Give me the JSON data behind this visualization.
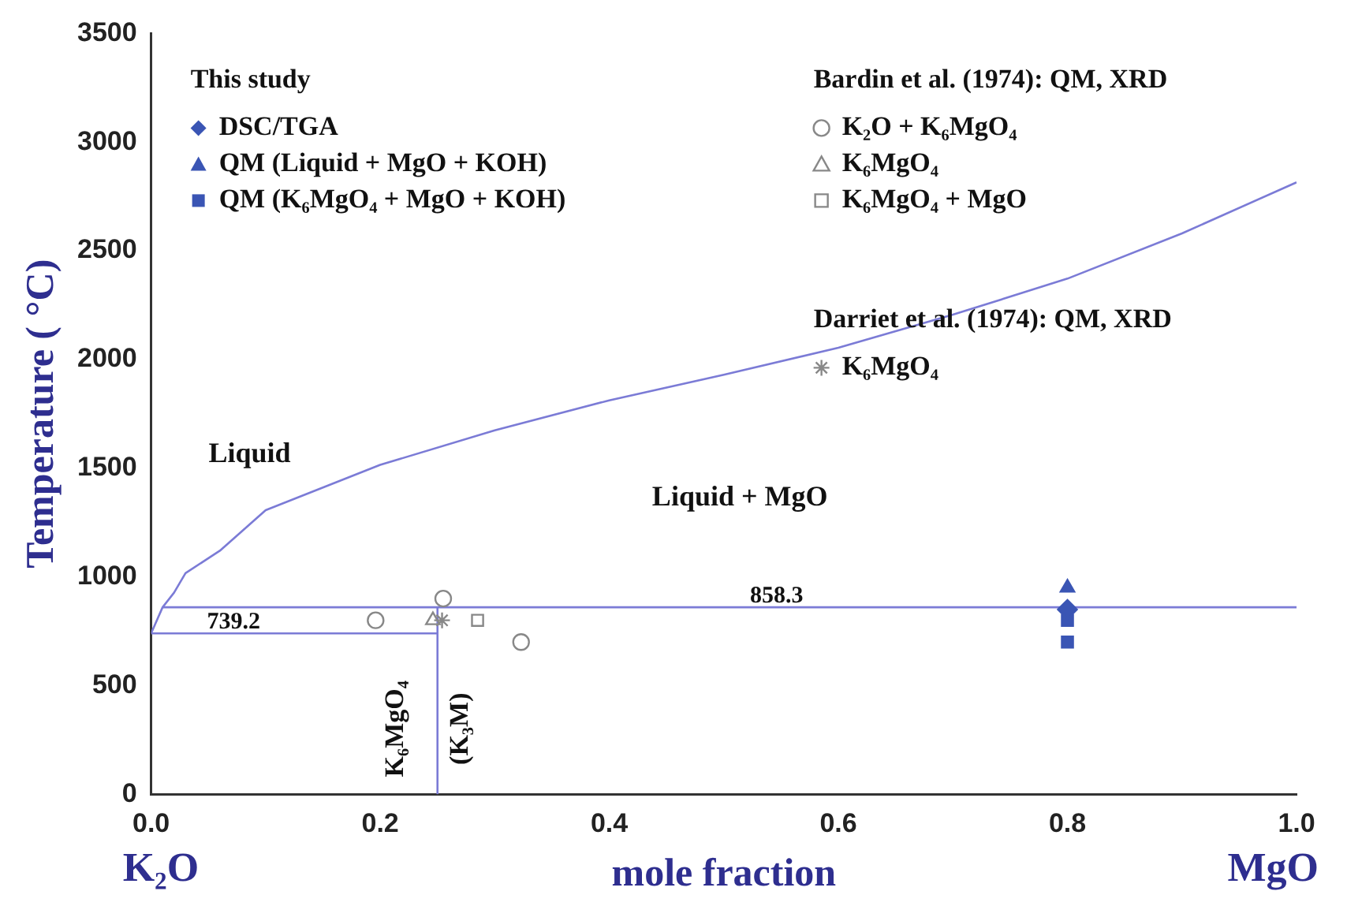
{
  "chart_data": {
    "type": "scatter",
    "xlabel": "mole fraction",
    "ylabel": "Temperature ( °C)",
    "xlim": [
      0,
      1
    ],
    "ylim": [
      0,
      3500
    ],
    "xticks": [
      {
        "value": 0,
        "label": "0.0"
      },
      {
        "value": 0.2,
        "label": "0.2"
      },
      {
        "value": 0.4,
        "label": "0.4"
      },
      {
        "value": 0.6,
        "label": "0.6"
      },
      {
        "value": 0.8,
        "label": "0.8"
      },
      {
        "value": 1,
        "label": "1.0"
      }
    ],
    "yticks": [
      0,
      500,
      1000,
      1500,
      2000,
      2500,
      3000,
      3500
    ],
    "grid": false,
    "legend": "top",
    "series": [
      {
        "name": "DSC/TGA",
        "marker": "diamond",
        "color": "#3a55b4",
        "x": [
          0.8
        ],
        "values": [
          850
        ]
      },
      {
        "name": "QM (Liquid + MgO + KOH)",
        "marker": "triangle",
        "color": "#3a55b4",
        "x": [
          0.8
        ],
        "values": [
          950
        ]
      },
      {
        "name": "QM (K₆MgO₄ + MgO + KOH)",
        "marker": "square",
        "color": "#3a55b4",
        "x": [
          0.8,
          0.8
        ],
        "values": [
          800,
          700
        ]
      },
      {
        "name": "K₂O + K₆MgO₄",
        "marker": "circle",
        "color": "#888888",
        "x": [
          0.196,
          0.255,
          0.323
        ],
        "values": [
          800,
          900,
          700
        ]
      },
      {
        "name": "K₆MgO₄",
        "marker": "triangle",
        "color": "#888888",
        "x": [
          0.246
        ],
        "values": [
          800
        ]
      },
      {
        "name": "K₆MgO₄ + MgO",
        "marker": "square",
        "color": "#888888",
        "x": [
          0.285
        ],
        "values": [
          800
        ]
      },
      {
        "name": "K₆MgO₄",
        "marker": "cross",
        "color": "#888888",
        "x": [
          0.254
        ],
        "values": [
          800
        ]
      },
      {
        "type": "line",
        "marker": "none",
        "color": "#7b7bd6",
        "x": [
          0,
          0.01,
          0.02,
          0.03,
          0.06,
          0.1,
          0.2,
          0.3,
          0.4,
          0.5,
          0.6,
          0.7,
          0.8,
          0.9,
          1.0
        ],
        "values": [
          740,
          860,
          927,
          1017,
          1120,
          1307,
          1515,
          1674,
          1812,
          1930,
          2054,
          2206,
          2372,
          2580,
          2815
        ]
      },
      {
        "type": "line",
        "marker": "none",
        "color": "#7b7bd6",
        "x": [
          0,
          0.25
        ],
        "values": [
          740,
          740
        ]
      },
      {
        "type": "line",
        "marker": "none",
        "color": "#7b7bd6",
        "x": [
          0.01,
          1
        ],
        "values": [
          860,
          860
        ]
      },
      {
        "type": "line",
        "marker": "none",
        "color": "#7b7bd6",
        "x": [
          0.25,
          0.25
        ],
        "values": [
          0,
          860
        ]
      }
    ],
    "annotations": [
      "This study",
      "Bardin et al. (1974): QM, XRD",
      "Darriet et al. (1974): QM, XRD",
      "Liquid",
      "Liquid + MgO",
      "739.2",
      "858.3",
      "K₆MgO₄",
      "(K₃M)",
      "K₂O",
      "MgO"
    ]
  }
}
